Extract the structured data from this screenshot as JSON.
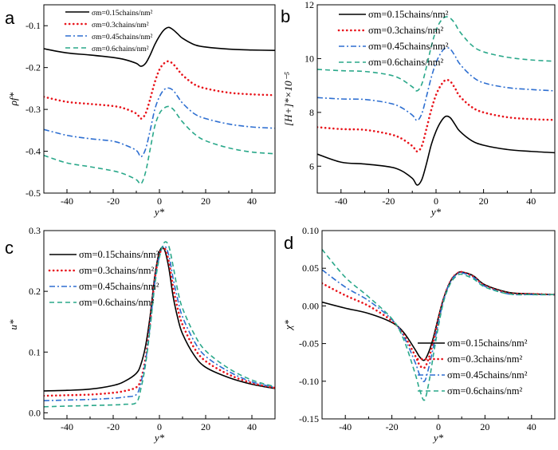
{
  "figure": {
    "legend_names": [
      "σm=0.15chains/nm²",
      "σm=0.3chains/nm²",
      "σm=0.45chains/nm²",
      "σm=0.6chains/nm²"
    ],
    "series_styles": [
      {
        "color": "#000000",
        "dash": "solid"
      },
      {
        "color": "#e8141b",
        "dash": "dot"
      },
      {
        "color": "#2e6fd1",
        "dash": "dashdot"
      },
      {
        "color": "#2aa88a",
        "dash": "dash"
      }
    ]
  },
  "chart_data": [
    {
      "panel": "a",
      "type": "line",
      "title": "",
      "xlabel": "y*",
      "ylabel": "ρf*",
      "xlim": [
        -50,
        50
      ],
      "ylim": [
        -0.5,
        -0.05
      ],
      "xticks": [
        -40,
        -20,
        0,
        20,
        40
      ],
      "yticks": [
        -0.1,
        -0.2,
        -0.3,
        -0.4,
        -0.5
      ],
      "ytick_labels": [
        "-0.1",
        "-0.2",
        "-0.3",
        "-0.4",
        "-0.5"
      ],
      "legend_position": "top-left",
      "legend_labels": [
        "σm=0.15chains/nm²",
        "σm=0.3chains/nm²",
        "σm=0.45chains/nm²",
        "σm=0.6chains/nm²"
      ],
      "x": [
        -50,
        -40,
        -30,
        -20,
        -15,
        -10,
        -8,
        -6,
        -4,
        -2,
        0,
        2,
        4,
        6,
        8,
        10,
        15,
        20,
        30,
        40,
        50
      ],
      "series": [
        {
          "name": "σm=0.15chains/nm²",
          "values": [
            -0.155,
            -0.165,
            -0.17,
            -0.176,
            -0.181,
            -0.19,
            -0.197,
            -0.19,
            -0.17,
            -0.145,
            -0.125,
            -0.11,
            -0.104,
            -0.11,
            -0.12,
            -0.13,
            -0.145,
            -0.151,
            -0.156,
            -0.158,
            -0.159
          ]
        },
        {
          "name": "σm=0.3chains/nm²",
          "values": [
            -0.27,
            -0.282,
            -0.287,
            -0.292,
            -0.298,
            -0.31,
            -0.322,
            -0.31,
            -0.275,
            -0.235,
            -0.205,
            -0.19,
            -0.185,
            -0.192,
            -0.205,
            -0.218,
            -0.24,
            -0.25,
            -0.26,
            -0.264,
            -0.266
          ]
        },
        {
          "name": "σm=0.45chains/nm²",
          "values": [
            -0.348,
            -0.362,
            -0.37,
            -0.376,
            -0.385,
            -0.398,
            -0.413,
            -0.395,
            -0.35,
            -0.3,
            -0.27,
            -0.253,
            -0.249,
            -0.255,
            -0.27,
            -0.285,
            -0.31,
            -0.322,
            -0.335,
            -0.342,
            -0.345
          ]
        },
        {
          "name": "σm=0.6chains/nm²",
          "values": [
            -0.41,
            -0.428,
            -0.437,
            -0.447,
            -0.455,
            -0.468,
            -0.478,
            -0.45,
            -0.395,
            -0.34,
            -0.31,
            -0.297,
            -0.293,
            -0.3,
            -0.315,
            -0.33,
            -0.358,
            -0.375,
            -0.392,
            -0.402,
            -0.406
          ]
        }
      ]
    },
    {
      "panel": "b",
      "type": "line",
      "title": "",
      "xlabel": "y*",
      "ylabel": "[H+]*×10⁻⁵",
      "xlim": [
        -50,
        50
      ],
      "ylim": [
        5,
        12
      ],
      "xticks": [
        -40,
        -20,
        0,
        20,
        40
      ],
      "yticks": [
        6,
        8,
        10,
        12
      ],
      "ytick_labels": [
        "6",
        "8",
        "10",
        "12"
      ],
      "legend_position": "top-left",
      "legend_labels": [
        "σm=0.15chains/nm²",
        "σm=0.3chains/nm²",
        "σm=0.45chains/nm²",
        "σm=0.6chains/nm²"
      ],
      "x": [
        -50,
        -40,
        -30,
        -20,
        -15,
        -10,
        -8,
        -6,
        -4,
        -2,
        0,
        2,
        4,
        6,
        8,
        10,
        15,
        20,
        30,
        40,
        50
      ],
      "series": [
        {
          "name": "σm=0.15chains/nm²",
          "values": [
            6.45,
            6.15,
            6.08,
            5.98,
            5.85,
            5.55,
            5.3,
            5.5,
            6.1,
            6.8,
            7.3,
            7.65,
            7.85,
            7.8,
            7.55,
            7.3,
            6.95,
            6.78,
            6.62,
            6.55,
            6.5
          ]
        },
        {
          "name": "σm=0.3chains/nm²",
          "values": [
            7.45,
            7.38,
            7.35,
            7.2,
            7.05,
            6.75,
            6.55,
            6.75,
            7.4,
            8.1,
            8.65,
            9.0,
            9.2,
            9.15,
            8.9,
            8.6,
            8.2,
            8.0,
            7.82,
            7.75,
            7.72
          ]
        },
        {
          "name": "σm=0.45chains/nm²",
          "values": [
            8.55,
            8.5,
            8.48,
            8.35,
            8.2,
            7.9,
            7.7,
            7.95,
            8.6,
            9.3,
            9.85,
            10.2,
            10.4,
            10.35,
            10.1,
            9.8,
            9.35,
            9.1,
            8.92,
            8.85,
            8.8
          ]
        },
        {
          "name": "σm=0.6chains/nm²",
          "values": [
            9.6,
            9.55,
            9.52,
            9.4,
            9.25,
            8.95,
            8.8,
            9.05,
            9.7,
            10.45,
            11.05,
            11.4,
            11.55,
            11.5,
            11.3,
            11.0,
            10.5,
            10.25,
            10.05,
            9.95,
            9.9
          ]
        }
      ]
    },
    {
      "panel": "c",
      "type": "line",
      "title": "",
      "xlabel": "y*",
      "ylabel": "u*",
      "xlim": [
        -50,
        50
      ],
      "ylim": [
        -0.01,
        0.3
      ],
      "xticks": [
        -40,
        -20,
        0,
        20,
        40
      ],
      "yticks": [
        0.0,
        0.1,
        0.2,
        0.3
      ],
      "ytick_labels": [
        "0.0",
        "0.1",
        "0.2",
        "0.3"
      ],
      "legend_position": "top-left",
      "legend_labels": [
        "σm=0.15chains/nm²",
        "σm=0.3chains/nm²",
        "σm=0.45chains/nm²",
        "σm=0.6chains/nm²"
      ],
      "x": [
        -50,
        -40,
        -30,
        -20,
        -15,
        -10,
        -8,
        -6,
        -4,
        -2,
        0,
        2,
        4,
        6,
        8,
        10,
        15,
        20,
        30,
        40,
        50
      ],
      "series": [
        {
          "name": "σm=0.15chains/nm²",
          "values": [
            0.036,
            0.037,
            0.039,
            0.045,
            0.052,
            0.065,
            0.08,
            0.11,
            0.16,
            0.225,
            0.265,
            0.27,
            0.24,
            0.19,
            0.155,
            0.13,
            0.095,
            0.075,
            0.058,
            0.047,
            0.04
          ]
        },
        {
          "name": "σm=0.3chains/nm²",
          "values": [
            0.028,
            0.029,
            0.03,
            0.033,
            0.036,
            0.042,
            0.055,
            0.09,
            0.15,
            0.22,
            0.26,
            0.272,
            0.25,
            0.205,
            0.17,
            0.145,
            0.107,
            0.085,
            0.063,
            0.049,
            0.041
          ]
        },
        {
          "name": "σm=0.45chains/nm²",
          "values": [
            0.02,
            0.021,
            0.022,
            0.024,
            0.026,
            0.03,
            0.05,
            0.085,
            0.145,
            0.215,
            0.258,
            0.275,
            0.26,
            0.22,
            0.185,
            0.158,
            0.118,
            0.093,
            0.068,
            0.051,
            0.042
          ]
        },
        {
          "name": "σm=0.6chains/nm²",
          "values": [
            0.01,
            0.011,
            0.012,
            0.013,
            0.014,
            0.017,
            0.04,
            0.08,
            0.14,
            0.21,
            0.256,
            0.28,
            0.275,
            0.24,
            0.2,
            0.172,
            0.13,
            0.102,
            0.073,
            0.054,
            0.043
          ]
        }
      ]
    },
    {
      "panel": "d",
      "type": "line",
      "title": "",
      "xlabel": "y*",
      "ylabel": "χ*",
      "xlim": [
        -50,
        50
      ],
      "ylim": [
        -0.15,
        0.1
      ],
      "xticks": [
        -40,
        -20,
        0,
        20,
        40
      ],
      "yticks": [
        0.1,
        0.05,
        0.0,
        -0.05,
        -0.1,
        -0.15
      ],
      "ytick_labels": [
        "0.10",
        "0.05",
        "0.00",
        "-0.05",
        "-0.10",
        "-0.15"
      ],
      "legend_position": "bottom-right",
      "legend_labels": [
        "σm=0.15chains/nm²",
        "σm=0.3chains/nm²",
        "σm=0.45chains/nm²",
        "σm=0.6chains/nm²"
      ],
      "x": [
        -50,
        -40,
        -30,
        -20,
        -15,
        -10,
        -8,
        -6,
        -4,
        -2,
        0,
        2,
        4,
        6,
        8,
        10,
        15,
        20,
        30,
        40,
        50
      ],
      "series": [
        {
          "name": "σm=0.15chains/nm²",
          "values": [
            0.005,
            -0.003,
            -0.01,
            -0.022,
            -0.035,
            -0.058,
            -0.068,
            -0.072,
            -0.06,
            -0.04,
            -0.015,
            0.008,
            0.025,
            0.037,
            0.043,
            0.045,
            0.04,
            0.028,
            0.018,
            0.016,
            0.015
          ]
        },
        {
          "name": "σm=0.3chains/nm²",
          "values": [
            0.03,
            0.014,
            0.0,
            -0.02,
            -0.038,
            -0.066,
            -0.079,
            -0.082,
            -0.068,
            -0.045,
            -0.018,
            0.007,
            0.025,
            0.037,
            0.043,
            0.045,
            0.039,
            0.027,
            0.017,
            0.016,
            0.015
          ]
        },
        {
          "name": "σm=0.45chains/nm²",
          "values": [
            0.048,
            0.025,
            0.007,
            -0.018,
            -0.04,
            -0.075,
            -0.092,
            -0.1,
            -0.08,
            -0.052,
            -0.022,
            0.005,
            0.024,
            0.036,
            0.042,
            0.044,
            0.038,
            0.026,
            0.016,
            0.015,
            0.015
          ]
        },
        {
          "name": "σm=0.6chains/nm²",
          "values": [
            0.075,
            0.038,
            0.012,
            -0.017,
            -0.044,
            -0.09,
            -0.112,
            -0.125,
            -0.1,
            -0.062,
            -0.027,
            0.003,
            0.022,
            0.034,
            0.04,
            0.042,
            0.036,
            0.025,
            0.016,
            0.015,
            0.015
          ]
        }
      ]
    }
  ]
}
